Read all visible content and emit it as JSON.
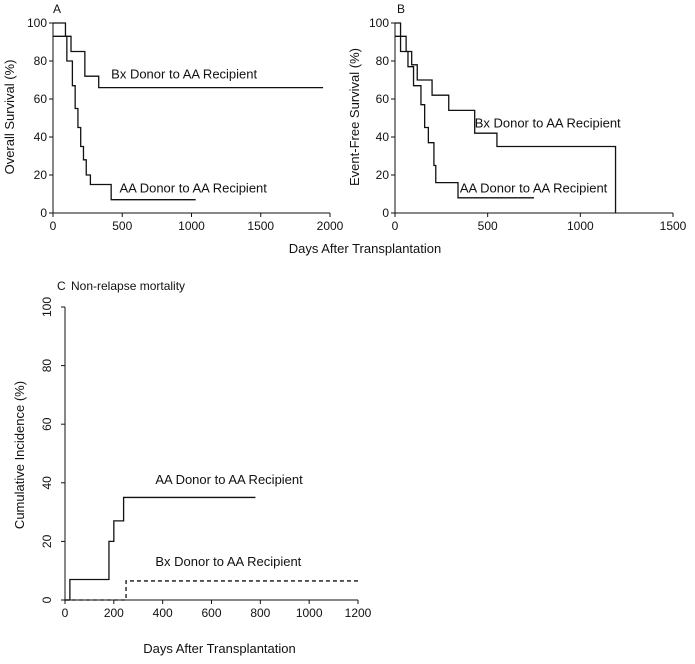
{
  "figure": {
    "shared_xlabel_top": "Days After Transplantation"
  },
  "chart_data": [
    {
      "panel": "A",
      "type": "line",
      "step": true,
      "title": "",
      "xlabel": "",
      "ylabel": "Overall Survival (%)",
      "xlim": [
        0,
        2000
      ],
      "ylim": [
        0,
        100
      ],
      "xticks": [
        0,
        500,
        1000,
        1500,
        2000
      ],
      "yticks": [
        0,
        20,
        40,
        60,
        80,
        100
      ],
      "series": [
        {
          "name": "Bx Donor to AA Recipient",
          "dash": false,
          "x": [
            0,
            40,
            90,
            130,
            230,
            330,
            1950
          ],
          "y": [
            100,
            100,
            93,
            85,
            72,
            66,
            66
          ]
        },
        {
          "name": "AA Donor to AA Recipient",
          "dash": false,
          "x": [
            0,
            100,
            140,
            160,
            180,
            200,
            220,
            240,
            270,
            300,
            420,
            1030
          ],
          "y": [
            93,
            80,
            67,
            55,
            45,
            35,
            28,
            20,
            15,
            15,
            7,
            7
          ]
        }
      ],
      "annotations": [
        {
          "text": "Bx Donor to AA Recipient",
          "x": 420,
          "y": 73
        },
        {
          "text": "AA Donor to AA Recipient",
          "x": 480,
          "y": 13
        }
      ]
    },
    {
      "panel": "B",
      "type": "line",
      "step": true,
      "title": "",
      "xlabel": "",
      "ylabel": "Event-Free Survival (%)",
      "xlim": [
        0,
        1500
      ],
      "ylim": [
        0,
        100
      ],
      "xticks": [
        0,
        500,
        1000,
        1500
      ],
      "yticks": [
        0,
        20,
        40,
        60,
        80,
        100
      ],
      "series": [
        {
          "name": "Bx Donor to AA Recipient",
          "dash": false,
          "x": [
            0,
            30,
            60,
            90,
            120,
            200,
            290,
            330,
            430,
            550,
            1190,
            1190
          ],
          "y": [
            100,
            93,
            85,
            78,
            70,
            62,
            54,
            54,
            42,
            35,
            35,
            0
          ]
        },
        {
          "name": "AA Donor to AA Recipient",
          "dash": false,
          "x": [
            0,
            30,
            70,
            100,
            140,
            160,
            180,
            210,
            220,
            340,
            750
          ],
          "y": [
            93,
            85,
            77,
            67,
            57,
            45,
            37,
            25,
            16,
            8,
            8
          ]
        }
      ],
      "annotations": [
        {
          "text": "Bx Donor to AA Recipient",
          "x": 430,
          "y": 47
        },
        {
          "text": "AA Donor to AA Recipient",
          "x": 350,
          "y": 13
        }
      ]
    },
    {
      "panel": "C",
      "type": "line",
      "step": true,
      "title": "Non-relapse mortality",
      "xlabel": "Days After Transplantation",
      "ylabel": "Cumulative Incidence (%)",
      "xlim": [
        0,
        1200
      ],
      "ylim": [
        0,
        100
      ],
      "xticks": [
        0,
        200,
        400,
        600,
        800,
        1000,
        1200
      ],
      "yticks": [
        0,
        20,
        40,
        60,
        80,
        100
      ],
      "series": [
        {
          "name": "AA Donor to AA Recipient",
          "dash": false,
          "x": [
            0,
            20,
            160,
            180,
            200,
            240,
            780
          ],
          "y": [
            0,
            7,
            7,
            20,
            27,
            35,
            35
          ]
        },
        {
          "name": "Bx Donor to AA Recipient",
          "dash": true,
          "x": [
            0,
            250,
            1200
          ],
          "y": [
            0,
            6.5,
            6.5
          ]
        }
      ],
      "annotations": [
        {
          "text": "AA Donor to AA Recipient",
          "x": 370,
          "y": 41
        },
        {
          "text": "Bx Donor to AA Recipient",
          "x": 370,
          "y": 13
        }
      ]
    }
  ]
}
